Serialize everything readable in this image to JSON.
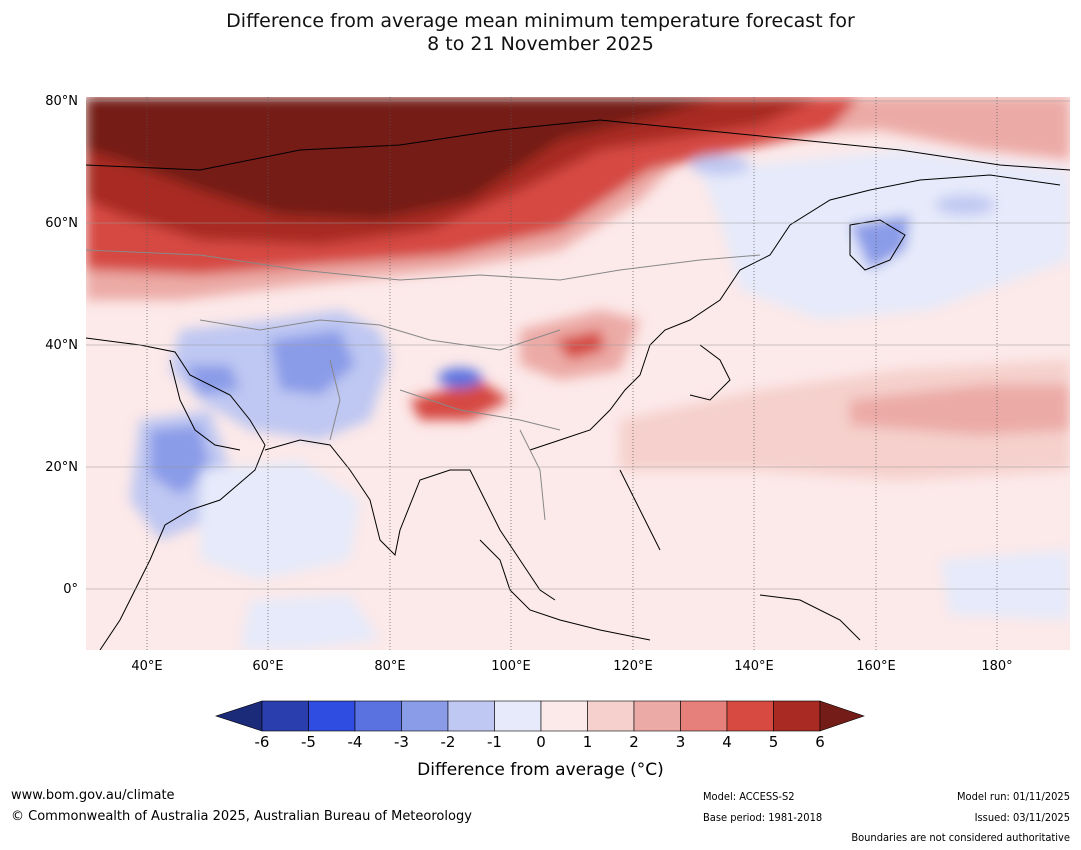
{
  "title": {
    "line1": "Difference from average mean minimum temperature forecast for",
    "line2": "8 to 21 November 2025"
  },
  "map": {
    "lat_labels": [
      "80°N",
      "60°N",
      "40°N",
      "20°N",
      "0°"
    ],
    "lon_labels": [
      "40°E",
      "60°E",
      "80°E",
      "100°E",
      "120°E",
      "140°E",
      "160°E",
      "180°"
    ],
    "lat_range": [
      -10,
      80
    ],
    "lon_range": [
      30,
      190
    ]
  },
  "legend": {
    "ticks": [
      "-6",
      "-5",
      "-4",
      "-3",
      "-2",
      "-1",
      "0",
      "1",
      "2",
      "3",
      "4",
      "5",
      "6"
    ],
    "colors": [
      "#1c2a7a",
      "#2a3fad",
      "#2f4de0",
      "#5a72e0",
      "#8a9be8",
      "#bfc8f2",
      "#e6eafa",
      "#fce9e9",
      "#f5d0cc",
      "#ecaaa6",
      "#e5807a",
      "#d64a42",
      "#a82a22",
      "#741c17"
    ],
    "label": "Difference from average (°C)"
  },
  "footer": {
    "website": "www.bom.gov.au/climate",
    "copyright": "© Commonwealth of Australia 2025, Australian Bureau of Meteorology",
    "model": "Model: ACCESS-S2",
    "base_period": "Base period: 1981-2018",
    "model_run": "Model run: 01/11/2025",
    "issued": "Issued: 03/11/2025",
    "disclaimer": "Boundaries are not considered authoritative"
  }
}
